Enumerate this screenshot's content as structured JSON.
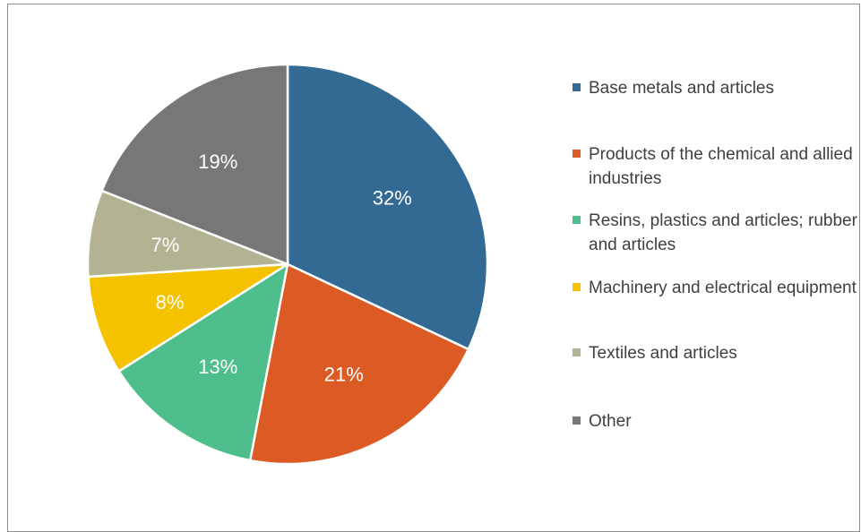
{
  "chart_data": {
    "type": "pie",
    "slices": [
      {
        "label": "Base metals and articles",
        "value": 32,
        "display": "32%",
        "color": "#336a93"
      },
      {
        "label": "Products of the chemical and allied industries",
        "value": 21,
        "display": "21%",
        "color": "#dc5a23"
      },
      {
        "label": "Resins, plastics and articles; rubber and articles",
        "value": 13,
        "display": "13%",
        "color": "#4ebe8c"
      },
      {
        "label": "Machinery and electrical equipment",
        "value": 8,
        "display": "8%",
        "color": "#f5c200"
      },
      {
        "label": "Textiles and articles",
        "value": 7,
        "display": "7%",
        "color": "#b3b393"
      },
      {
        "label": "Other",
        "value": 19,
        "display": "19%",
        "color": "#777777"
      }
    ],
    "start": "12 o'clock",
    "direction": "clockwise",
    "legend_position": "right",
    "title": ""
  }
}
